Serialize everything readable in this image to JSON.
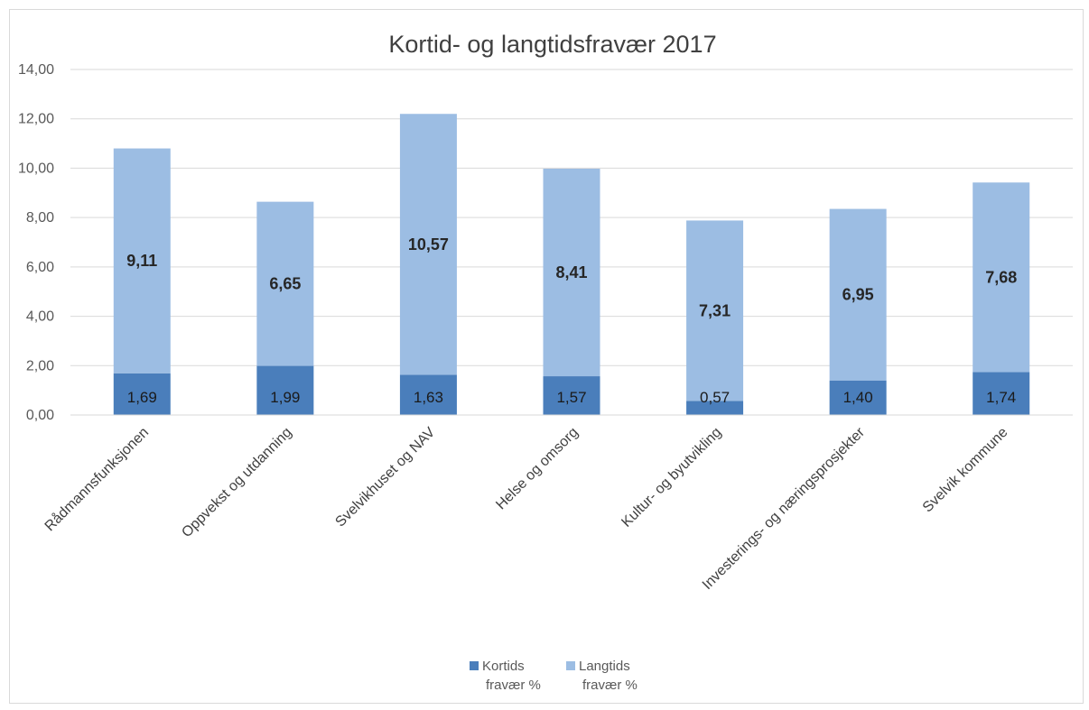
{
  "chart_data": {
    "type": "bar",
    "stacked": true,
    "title": "Kortid- og langtidsfravær 2017",
    "categories": [
      "Rådmannsfunksjonen",
      "Oppvekst og utdanning",
      "Svelvikhuset og NAV",
      "Helse og omsorg",
      "Kultur- og byutvikling",
      "Investerings- og næringsprosjekter",
      "Svelvik kommune"
    ],
    "series": [
      {
        "name_lines": [
          "Kortids",
          "fravær %"
        ],
        "color": "#4a7ebb",
        "values": [
          1.69,
          1.99,
          1.63,
          1.57,
          0.57,
          1.4,
          1.74
        ],
        "labels": [
          "1,69",
          "1,99",
          "1,63",
          "1,57",
          "0,57",
          "1,40",
          "1,74"
        ]
      },
      {
        "name_lines": [
          "Langtids",
          "fravær %"
        ],
        "color": "#9cbde3",
        "values": [
          9.11,
          6.65,
          10.57,
          8.41,
          7.31,
          6.95,
          7.68
        ],
        "labels": [
          "9,11",
          "6,65",
          "10,57",
          "8,41",
          "7,31",
          "6,95",
          "7,68"
        ]
      }
    ],
    "ylim": [
      0,
      14
    ],
    "y_ticks": [
      0,
      2,
      4,
      6,
      8,
      10,
      12,
      14
    ],
    "y_tick_labels": [
      "0,00",
      "2,00",
      "4,00",
      "6,00",
      "8,00",
      "10,00",
      "12,00",
      "14,00"
    ],
    "grid": true,
    "legend_position": "bottom"
  }
}
